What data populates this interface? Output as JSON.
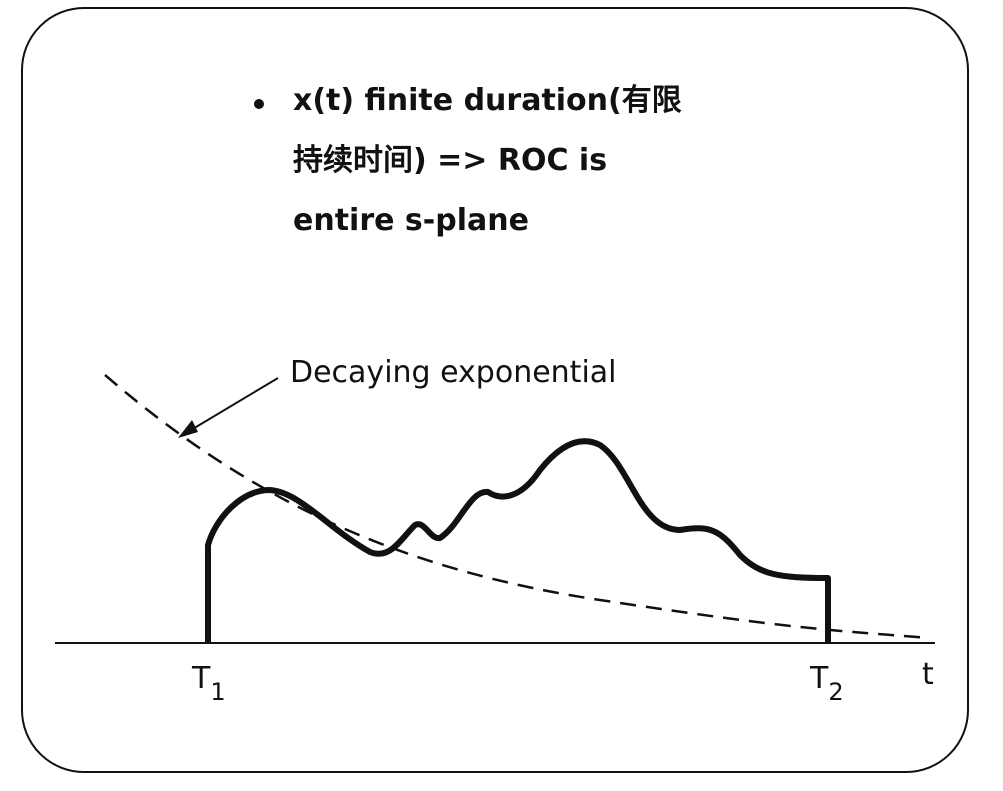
{
  "bullet": {
    "lines": [
      "x(t) finite duration(有限",
      "持续时间) => ROC is",
      "entire s-plane"
    ]
  },
  "annotation": "Decaying exponential",
  "axis": {
    "label": "t",
    "ticks": [
      {
        "main": "T",
        "sub": "1"
      },
      {
        "main": "T",
        "sub": "2"
      }
    ]
  }
}
